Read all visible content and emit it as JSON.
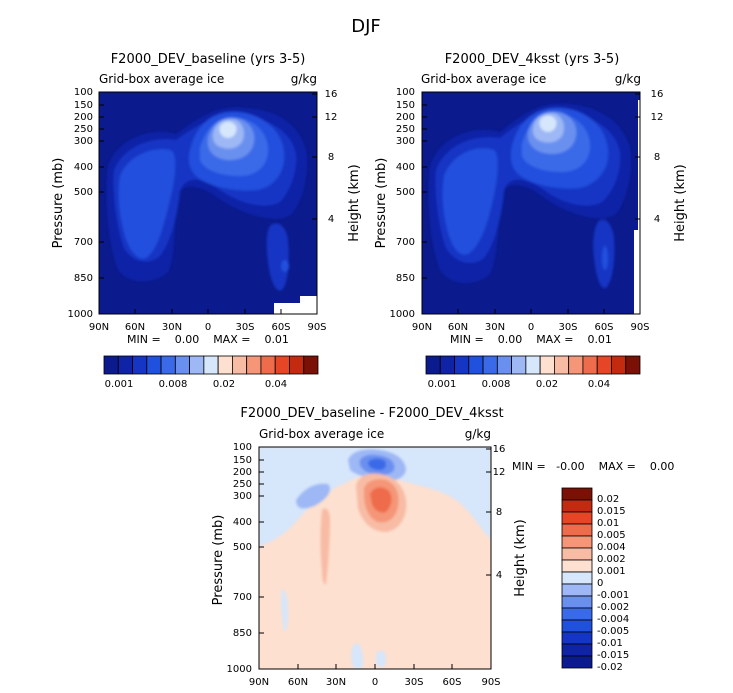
{
  "page_title": "DJF",
  "chart_data": [
    {
      "type": "heatmap",
      "title": "F2000_DEV_baseline (yrs 3-5)",
      "subtitle_left": "Grid-box average ice",
      "subtitle_right": "g/kg",
      "ylabel": "Pressure (mb)",
      "ylabel_right": "Height (km)",
      "x_ticks": [
        "90N",
        "60N",
        "30N",
        "0",
        "30S",
        "60S",
        "90S"
      ],
      "x_values": [
        90,
        60,
        30,
        0,
        -30,
        -60,
        -90
      ],
      "y_ticks": [
        "100",
        "150",
        "200",
        "250",
        "300",
        "400",
        "500",
        "700",
        "850",
        "1000"
      ],
      "y_values": [
        100,
        150,
        200,
        250,
        300,
        400,
        500,
        700,
        850,
        1000
      ],
      "height_ticks": [
        "16",
        "12",
        "8",
        "4"
      ],
      "height_values": [
        16,
        12,
        8,
        4
      ],
      "ylim": [
        1000,
        100
      ],
      "stats_text": "MIN =    0.00    MAX =    0.01",
      "min": 0.0,
      "max": 0.01,
      "colorbar_labels": [
        "0.001",
        "0.008",
        "0.02",
        "0.04"
      ]
    },
    {
      "type": "heatmap",
      "title": "F2000_DEV_4ksst (yrs 3-5)",
      "subtitle_left": "Grid-box average ice",
      "subtitle_right": "g/kg",
      "ylabel": "Pressure (mb)",
      "ylabel_right": "Height (km)",
      "x_ticks": [
        "90N",
        "60N",
        "30N",
        "0",
        "30S",
        "60S",
        "90S"
      ],
      "x_values": [
        90,
        60,
        30,
        0,
        -30,
        -60,
        -90
      ],
      "y_ticks": [
        "100",
        "150",
        "200",
        "250",
        "300",
        "400",
        "500",
        "700",
        "850",
        "1000"
      ],
      "y_values": [
        100,
        150,
        200,
        250,
        300,
        400,
        500,
        700,
        850,
        1000
      ],
      "height_ticks": [
        "16",
        "12",
        "8",
        "4"
      ],
      "height_values": [
        16,
        12,
        8,
        4
      ],
      "ylim": [
        1000,
        100
      ],
      "stats_text": "MIN =    0.00    MAX =    0.01",
      "min": 0.0,
      "max": 0.01,
      "colorbar_labels": [
        "0.001",
        "0.008",
        "0.02",
        "0.04"
      ]
    },
    {
      "type": "heatmap",
      "title": "F2000_DEV_baseline - F2000_DEV_4ksst",
      "subtitle_left": "Grid-box average ice",
      "subtitle_right": "g/kg",
      "ylabel": "Pressure (mb)",
      "ylabel_right": "Height (km)",
      "x_ticks": [
        "90N",
        "60N",
        "30N",
        "0",
        "30S",
        "60S",
        "90S"
      ],
      "x_values": [
        90,
        60,
        30,
        0,
        -30,
        -60,
        -90
      ],
      "y_ticks": [
        "100",
        "150",
        "200",
        "250",
        "300",
        "400",
        "500",
        "700",
        "850",
        "1000"
      ],
      "y_values": [
        100,
        150,
        200,
        250,
        300,
        400,
        500,
        700,
        850,
        1000
      ],
      "height_ticks": [
        "16",
        "12",
        "8",
        "4"
      ],
      "height_values": [
        16,
        12,
        8,
        4
      ],
      "ylim": [
        1000,
        100
      ],
      "stats_text": "MIN =   -0.00    MAX =    0.00",
      "min": -0.0,
      "max": 0.0,
      "colorbar_labels": [
        "0.02",
        "0.015",
        "0.01",
        "0.005",
        "0.004",
        "0.002",
        "0.001",
        "0",
        "-0.001",
        "-0.002",
        "-0.004",
        "-0.005",
        "-0.01",
        "-0.015",
        "-0.02"
      ]
    }
  ],
  "colors": {
    "abs_scale": [
      "#0b1a8c",
      "#0f23a6",
      "#1536c4",
      "#2050de",
      "#3a6ae8",
      "#6a90ef",
      "#9db8f5",
      "#d6e6fb",
      "#fde0d0",
      "#f8bca4",
      "#f49677",
      "#ee6c4c",
      "#e64526",
      "#c42a10",
      "#7a1006"
    ],
    "diff_scale": [
      "#7a1006",
      "#c42a10",
      "#e64526",
      "#ee6c4c",
      "#f49677",
      "#f8bca4",
      "#fde0d0",
      "#d6e6fb",
      "#9db8f5",
      "#6a90ef",
      "#3a6ae8",
      "#2050de",
      "#1536c4",
      "#0f23a6",
      "#0b1a8c"
    ]
  }
}
